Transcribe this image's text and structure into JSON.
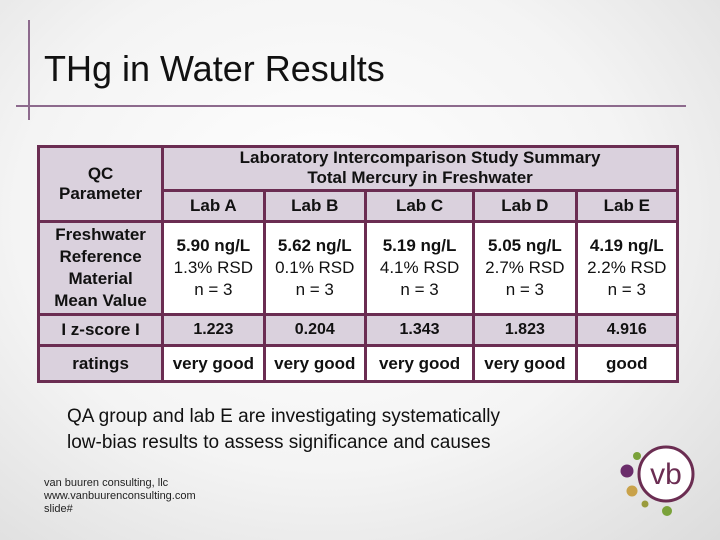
{
  "slide": {
    "title": "THg in Water Results",
    "note_line1": "QA group and lab E are investigating systematically",
    "note_line2": "low-bias results to assess significance and causes",
    "footer": {
      "company": "van buuren consulting, llc",
      "website": "www.vanbuurenconsulting.com",
      "slide_label": "slide#"
    },
    "logo": {
      "text": "vb",
      "icon": "vb-logo-dots"
    }
  },
  "table": {
    "param_header_line1": "QC",
    "param_header_line2": "Parameter",
    "study_title_line1": "Laboratory Intercomparison Study Summary",
    "study_title_line2": "Total Mercury in Freshwater",
    "labs": [
      "Lab A",
      "Lab B",
      "Lab C",
      "Lab D",
      "Lab E"
    ],
    "rows": {
      "reference": {
        "label_lines": [
          "Freshwater",
          "Reference",
          "Material",
          "Mean Value"
        ],
        "values": [
          {
            "mean": "5.90 ng/L",
            "rsd": "1.3% RSD",
            "n": "n = 3"
          },
          {
            "mean": "5.62 ng/L",
            "rsd": "0.1% RSD",
            "n": "n = 3"
          },
          {
            "mean": "5.19 ng/L",
            "rsd": "4.1% RSD",
            "n": "n = 3"
          },
          {
            "mean": "5.05 ng/L",
            "rsd": "2.7% RSD",
            "n": "n = 3"
          },
          {
            "mean": "4.19 ng/L",
            "rsd": "2.2% RSD",
            "n": "n = 3"
          }
        ]
      },
      "zscore": {
        "label": "I z-score I",
        "values": [
          "1.223",
          "0.204",
          "1.343",
          "1.823",
          "4.916"
        ]
      },
      "ratings": {
        "label": "ratings",
        "values": [
          "very good",
          "very good",
          "very good",
          "very good",
          "good"
        ]
      }
    }
  },
  "colors": {
    "rule": "#8d6a8d",
    "table_border": "#6b2d52",
    "cell_light": "#dad1dd",
    "logo_circle": "#6b2d52",
    "dot_green": "#7aa23a",
    "dot_purple": "#6b2d6b",
    "dot_gold": "#c9a24a",
    "dot_olive": "#9a9b3c"
  }
}
